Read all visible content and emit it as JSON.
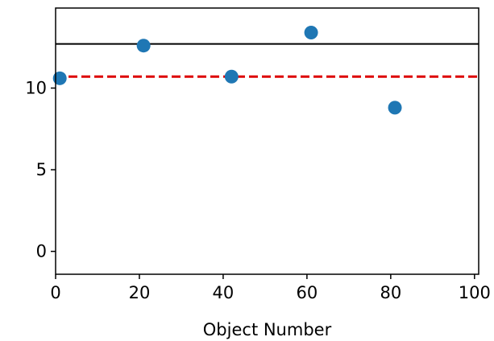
{
  "chart_data": {
    "type": "scatter",
    "title": "",
    "xlabel": "Object Number",
    "ylabel": "",
    "xlim": [
      0,
      101
    ],
    "ylim": [
      -1.4,
      14.9
    ],
    "x_ticks": [
      0,
      20,
      40,
      60,
      80,
      100
    ],
    "x_tick_labels": [
      "0",
      "20",
      "40",
      "60",
      "80",
      "100"
    ],
    "y_ticks": [
      0,
      5,
      10
    ],
    "y_tick_labels": [
      "0",
      "5",
      "10"
    ],
    "grid": false,
    "legend": "none",
    "series": [
      {
        "x": [
          1,
          21,
          42,
          61,
          81
        ],
        "y": [
          10.6,
          12.6,
          10.7,
          13.4,
          8.8
        ],
        "color": "#1f77b4"
      }
    ],
    "reference_lines": [
      {
        "orientation": "horizontal",
        "y": 12.7,
        "style": "solid",
        "color": "#000000"
      },
      {
        "orientation": "horizontal",
        "y": 10.7,
        "style": "dashed",
        "color": "#dd0000"
      }
    ]
  }
}
